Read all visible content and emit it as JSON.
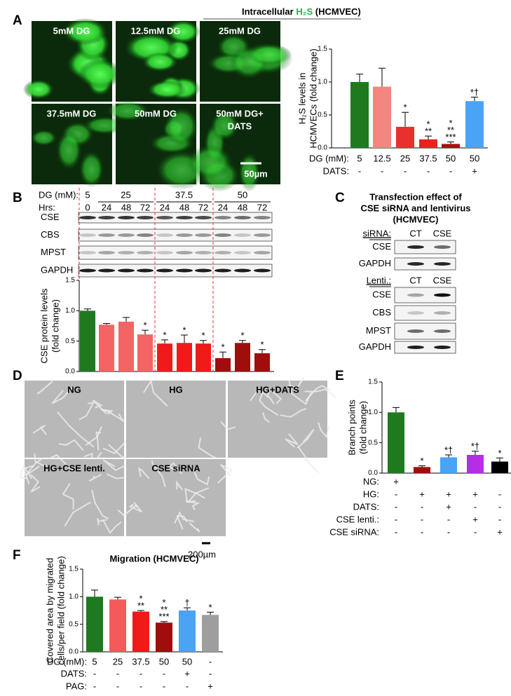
{
  "panel_labels": [
    "A",
    "B",
    "C",
    "D",
    "E",
    "F"
  ],
  "panel_a": {
    "header": [
      "Intracellular ",
      "H₂S",
      " (HCMVEC)"
    ],
    "images": [
      [
        "5mM DG"
      ],
      [
        "12.5mM DG"
      ],
      [
        "25mM DG"
      ],
      [
        "37.5mM DG"
      ],
      [
        "50mM DG"
      ],
      [
        "50mM DG+",
        "DATS"
      ]
    ],
    "scale_bar": "50µm"
  },
  "panel_b": {
    "rows": [
      {
        "label": "DG (mM):",
        "cells": [
          "5",
          "25",
          "37.5",
          "50"
        ]
      },
      {
        "label": "Hrs:",
        "cells": [
          "0",
          "24",
          "48",
          "72",
          "24",
          "48",
          "72",
          "24",
          "48",
          "72"
        ]
      }
    ],
    "blots": [
      "CSE",
      "CBS",
      "MPST",
      "GAPDH"
    ]
  },
  "panel_c": {
    "title": [
      "Transfection effect of",
      "CSE siRNA and lentivirus",
      "(HCMVEC)"
    ],
    "groups": [
      {
        "label": "siRNA:",
        "cells": [
          "CT",
          "CSE"
        ],
        "blots": [
          "CSE",
          "GAPDH"
        ]
      },
      {
        "label": "Lenti.:",
        "cells": [
          "CT",
          "CSE"
        ],
        "blots": [
          "CSE",
          "CBS",
          "MPST",
          "GAPDH"
        ]
      }
    ]
  },
  "panel_d": {
    "images": [
      "NG",
      "HG",
      "HG+DATS",
      "HG+CSE lenti.",
      "CSE siRNA"
    ],
    "scale_bar": "200µm"
  },
  "chart_data": [
    {
      "type": "bar",
      "y_label": [
        "H₂S levels in",
        "HCMVECs (fold change)"
      ],
      "ylim": [
        0,
        1.5
      ],
      "yticks": [
        {
          "value": 0,
          "label": "0.0"
        },
        {
          "value": 0.5,
          "label": "0.5"
        },
        {
          "value": 1,
          "label": "1.0"
        },
        {
          "value": 1.5,
          "label": "1.5"
        }
      ],
      "values": [
        1.0,
        0.93,
        0.32,
        0.13,
        0.06,
        0.71
      ],
      "errors": [
        0.12,
        0.28,
        0.22,
        0.05,
        0.03,
        0.06
      ],
      "colors": [
        "#1f7a1f",
        "#f4867f",
        "#e8312c",
        "#e8231f",
        "#a80f0f",
        "#4aa3f5"
      ],
      "annotations": [
        null,
        null,
        [
          "*"
        ],
        [
          "*",
          "**"
        ],
        [
          "*",
          "**",
          "***"
        ],
        [
          "*†"
        ]
      ],
      "rows": [
        {
          "label": "DG (mM):",
          "cells": [
            "5",
            "12.5",
            "25",
            "37.5",
            "50",
            "50"
          ]
        },
        {
          "label": "DATS:",
          "cells": [
            "-",
            "-",
            "-",
            "-",
            "-",
            "+"
          ]
        }
      ]
    },
    {
      "type": "bar",
      "y_label": [
        "CSE protein levels",
        "(fold change)"
      ],
      "ylim": [
        0,
        1.5
      ],
      "yticks": [
        {
          "value": 0,
          "label": "0.0"
        },
        {
          "value": 0.5,
          "label": "0.5"
        },
        {
          "value": 1,
          "label": "1.0"
        },
        {
          "value": 1.5,
          "label": "1.5"
        }
      ],
      "values": [
        1.0,
        0.77,
        0.82,
        0.61,
        0.46,
        0.47,
        0.46,
        0.22,
        0.47,
        0.3
      ],
      "errors": [
        0.03,
        0.02,
        0.07,
        0.07,
        0.06,
        0.13,
        0.05,
        0.1,
        0.04,
        0.06
      ],
      "colors": [
        "#1f7a1f",
        "#f46464",
        "#f46464",
        "#f46464",
        "#f01a1a",
        "#f01a1a",
        "#f01a1a",
        "#a00d0d",
        "#a00d0d",
        "#a00d0d"
      ],
      "annotations": [
        null,
        null,
        null,
        [
          "*"
        ],
        [
          "*"
        ],
        [
          "*"
        ],
        [
          "*"
        ],
        [
          "*"
        ],
        [
          "*"
        ],
        [
          "*"
        ]
      ]
    },
    {
      "type": "bar",
      "y_label": [
        "Branch points",
        "(fold change)"
      ],
      "ylim": [
        0,
        1.5
      ],
      "yticks": [
        {
          "value": 0,
          "label": "0.0"
        },
        {
          "value": 0.5,
          "label": "0.5"
        },
        {
          "value": 1,
          "label": "1.0"
        },
        {
          "value": 1.5,
          "label": "1.5"
        }
      ],
      "values": [
        1.0,
        0.1,
        0.26,
        0.3,
        0.19
      ],
      "errors": [
        0.08,
        0.02,
        0.04,
        0.06,
        0.06
      ],
      "colors": [
        "#1f7a1f",
        "#a00d0d",
        "#4aa3f5",
        "#b52ee6",
        "#000000"
      ],
      "annotations": [
        null,
        [
          "*"
        ],
        [
          "*†"
        ],
        [
          "*†"
        ],
        [
          "*"
        ]
      ],
      "rows": [
        {
          "label": "NG:",
          "cells": [
            "+",
            null,
            null,
            null,
            null
          ]
        },
        {
          "label": "HG:",
          "cells": [
            "-",
            "+",
            "+",
            "+",
            "-"
          ]
        },
        {
          "label": "DATS:",
          "cells": [
            "-",
            "-",
            "+",
            "-",
            "-"
          ]
        },
        {
          "label": "CSE lenti.:",
          "cells": [
            "-",
            "-",
            "-",
            "+",
            "-"
          ]
        },
        {
          "label": "CSE siRNA:",
          "cells": [
            "-",
            "-",
            "-",
            "-",
            "+"
          ]
        }
      ]
    },
    {
      "type": "bar",
      "title": "Migration (HCMVEC)",
      "y_label": [
        "Covered area by migrated",
        "cells/per field (fold change)"
      ],
      "ylim": [
        0,
        1.5
      ],
      "yticks": [
        {
          "value": 0,
          "label": "0.0"
        },
        {
          "value": 0.5,
          "label": "0.5"
        },
        {
          "value": 1,
          "label": "1.0"
        },
        {
          "value": 1.5,
          "label": "1.5"
        }
      ],
      "values": [
        1.0,
        0.95,
        0.73,
        0.53,
        0.75,
        0.67
      ],
      "errors": [
        0.12,
        0.04,
        0.02,
        0.02,
        0.05,
        0.05
      ],
      "colors": [
        "#1f7a1f",
        "#f45a5a",
        "#f01a1a",
        "#a00d0d",
        "#4aa3f5",
        "#9e9e9e"
      ],
      "annotations": [
        null,
        null,
        [
          "*",
          "**"
        ],
        [
          "*",
          "**",
          "***"
        ],
        [
          "†"
        ],
        [
          "*"
        ]
      ],
      "rows": [
        {
          "label": "DG (mM):",
          "cells": [
            "5",
            "25",
            "37.5",
            "50",
            "50",
            "-"
          ]
        },
        {
          "label": "DATS:",
          "cells": [
            "-",
            "-",
            "-",
            "-",
            "+",
            "-"
          ]
        },
        {
          "label": "PAG:",
          "cells": [
            "-",
            "-",
            "-",
            "-",
            "-",
            "+"
          ]
        }
      ]
    }
  ]
}
